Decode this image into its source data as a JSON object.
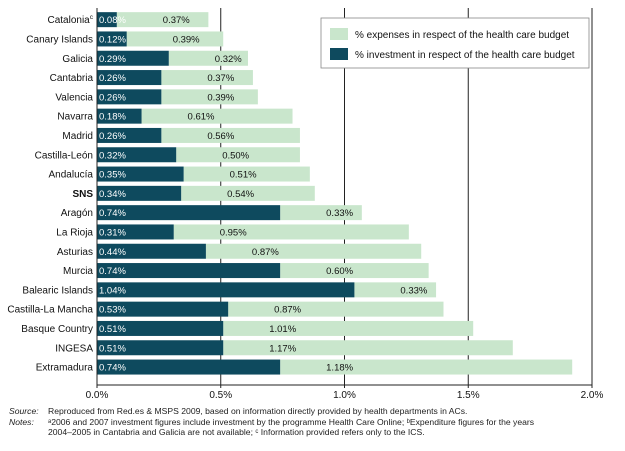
{
  "chart_data": {
    "type": "bar",
    "orientation": "horizontal",
    "stacked": true,
    "categories": [
      "Catalonia",
      "Canary Islands",
      "Galicia",
      "Cantabria",
      "Valencia",
      "Navarra",
      "Madrid",
      "Castilla-León",
      "Andalucía",
      "SNS",
      "Aragón",
      "La Rioja",
      "Asturias",
      "Murcia",
      "Balearic Islands",
      "Castilla-La Mancha",
      "Basque Country",
      "INGESA",
      "Extramadura"
    ],
    "category_superscripts": {
      "Catalonia": "c"
    },
    "bold_categories": [
      "SNS"
    ],
    "series": [
      {
        "name": "% investment in respect of the health care budget",
        "color": "#0e4a5e",
        "values": [
          0.08,
          0.12,
          0.29,
          0.26,
          0.26,
          0.18,
          0.26,
          0.32,
          0.35,
          0.34,
          0.74,
          0.31,
          0.44,
          0.74,
          1.04,
          0.53,
          0.51,
          0.51,
          0.74
        ],
        "labels": [
          "0.08%",
          "0.12%",
          "0.29%",
          "0.26%",
          "0.26%",
          "0.18%",
          "0.26%",
          "0.32%",
          "0.35%",
          "0.34%",
          "0.74%",
          "0.31%",
          "0.44%",
          "0.74%",
          "1.04%",
          "0.53%",
          "0.51%",
          "0.51%",
          "0.74%"
        ]
      },
      {
        "name": "% expenses in respect of the health care budget",
        "color": "#c9e6cc",
        "values": [
          0.37,
          0.39,
          0.32,
          0.37,
          0.39,
          0.61,
          0.56,
          0.5,
          0.51,
          0.54,
          0.33,
          0.95,
          0.87,
          0.6,
          0.33,
          0.87,
          1.01,
          1.17,
          1.18
        ],
        "labels": [
          "0.37%",
          "0.39%",
          "0.32%",
          "0.37%",
          "0.39%",
          "0.61%",
          "0.56%",
          "0.50%",
          "0.51%",
          "0.54%",
          "0.33%",
          "0.95%",
          "0.87%",
          "0.60%",
          "0.33%",
          "0.87%",
          "1.01%",
          "1.17%",
          "1.18%"
        ]
      }
    ],
    "xlim": [
      0,
      2.0
    ],
    "x_ticks": [
      0,
      0.5,
      1.0,
      1.5,
      2.0
    ],
    "x_tick_labels": [
      "0.0%",
      "0.5%",
      "1.0%",
      "1.5%",
      "2.0%"
    ],
    "title": "",
    "xlabel": "",
    "ylabel": "",
    "grid": "vertical lines at 0.5%, 1.0%, 1.5%",
    "legend_position": "top-right",
    "legend_order": [
      "% expenses in respect of the health care budget",
      "% investment in respect of the health care budget"
    ]
  },
  "footnotes": {
    "source_label": "Source:",
    "source_text": "Reproduced from Red.es & MSPS 2009, based on information directly provided by health departments in ACs.",
    "notes_label": "Notes:",
    "notes_line1": "ᵃ2006 and 2007 investment figures include investment by the programme Health Care Online; ᵇExpenditure figures for the years",
    "notes_line2": "2004–2005 in Cantabria and Galicia are not available; ᶜ Information provided refers only to the ICS."
  }
}
